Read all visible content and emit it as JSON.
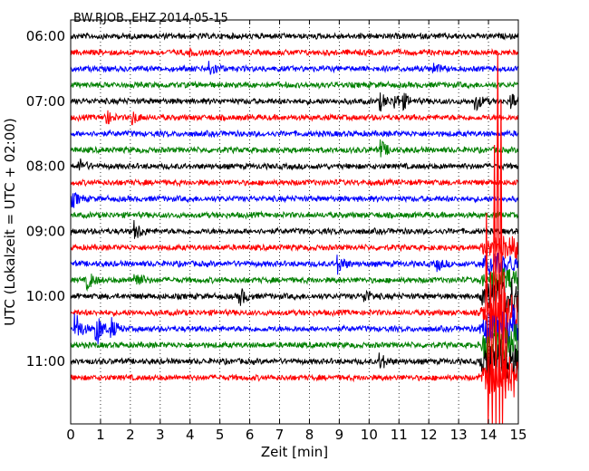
{
  "chart_data": {
    "type": "line",
    "title": "BW.RJOB..EHZ 2014-05-15",
    "xlabel": "Zeit  [min]",
    "ylabel": "UTC (Lokalzeit = UTC + 02:00)",
    "xlim": [
      0,
      15
    ],
    "xticks": [
      0,
      1,
      2,
      3,
      4,
      5,
      6,
      7,
      8,
      9,
      10,
      11,
      12,
      13,
      14,
      15
    ],
    "grid": "vertical dotted",
    "row_start": "06:00",
    "row_interval_min": 15,
    "row_count": 22,
    "row_colors": [
      "#000000",
      "#ff0000",
      "#0000ff",
      "#008000"
    ],
    "ytick_labels": [
      "06:00",
      "07:00",
      "08:00",
      "09:00",
      "10:00",
      "11:00"
    ],
    "ytick_rows": [
      0,
      4,
      8,
      12,
      16,
      20
    ],
    "events": [
      {
        "row": 1,
        "minute": 4.0,
        "amp": 0.15
      },
      {
        "row": 2,
        "minute": 4.7,
        "amp": 0.45
      },
      {
        "row": 2,
        "minute": 12.2,
        "amp": 0.25
      },
      {
        "row": 4,
        "minute": 10.4,
        "amp": 0.45
      },
      {
        "row": 4,
        "minute": 10.9,
        "amp": 0.4
      },
      {
        "row": 4,
        "minute": 11.2,
        "amp": 0.3
      },
      {
        "row": 4,
        "minute": 13.6,
        "amp": 0.45
      },
      {
        "row": 4,
        "minute": 14.8,
        "amp": 0.45
      },
      {
        "row": 5,
        "minute": 1.2,
        "amp": 0.4
      },
      {
        "row": 5,
        "minute": 2.1,
        "amp": 0.35
      },
      {
        "row": 7,
        "minute": 10.4,
        "amp": 0.55
      },
      {
        "row": 8,
        "minute": 0.3,
        "amp": 0.4
      },
      {
        "row": 10,
        "minute": 0.1,
        "amp": 0.4
      },
      {
        "row": 12,
        "minute": 2.2,
        "amp": 0.5
      },
      {
        "row": 14,
        "minute": 9.0,
        "amp": 0.5
      },
      {
        "row": 14,
        "minute": 12.3,
        "amp": 0.35
      },
      {
        "row": 15,
        "minute": 0.6,
        "amp": 0.5
      },
      {
        "row": 15,
        "minute": 2.2,
        "amp": 0.55
      },
      {
        "row": 16,
        "minute": 5.7,
        "amp": 0.5
      },
      {
        "row": 16,
        "minute": 9.9,
        "amp": 0.35
      },
      {
        "row": 18,
        "minute": 0.2,
        "amp": 0.9
      },
      {
        "row": 18,
        "minute": 0.9,
        "amp": 0.9
      },
      {
        "row": 18,
        "minute": 1.4,
        "amp": 0.5
      },
      {
        "row": 20,
        "minute": 10.4,
        "amp": 0.45
      },
      {
        "row": 20,
        "minute": 14.9,
        "amp": 0.45
      }
    ],
    "quake": {
      "start_row": 13,
      "minute": 14.0,
      "spike_minute": 14.25,
      "spike_color": "#ff0000"
    }
  }
}
